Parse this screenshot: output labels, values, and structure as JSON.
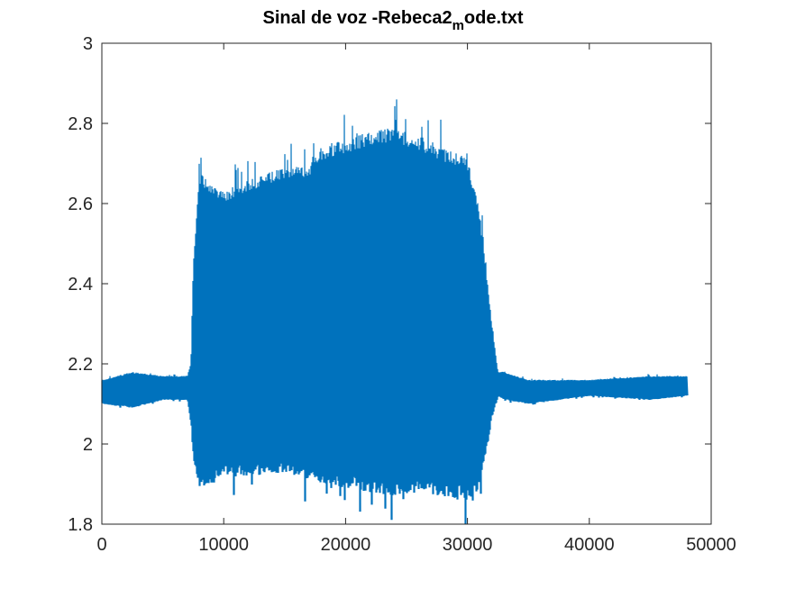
{
  "chart_data": {
    "type": "line",
    "title": "Sinal de voz -Rebeca2",
    "title_subscript": "m",
    "title_suffix": "ode.txt",
    "xlabel": "",
    "ylabel": "",
    "xlim": [
      0,
      50000
    ],
    "ylim": [
      1.8,
      3.0
    ],
    "x_ticks": [
      0,
      10000,
      20000,
      30000,
      40000,
      50000
    ],
    "x_tick_labels": [
      "0",
      "10000",
      "20000",
      "30000",
      "40000",
      "50000"
    ],
    "y_ticks": [
      1.8,
      2.0,
      2.2,
      2.4,
      2.6,
      2.8,
      3.0
    ],
    "y_tick_labels": [
      "1.8",
      "2",
      "2.2",
      "2.4",
      "2.6",
      "2.8",
      "3"
    ],
    "grid": false,
    "series_color": "#0072BD",
    "series": [
      {
        "samples": 48000,
        "envelope_x": [
          0,
          2500,
          5000,
          7000,
          7300,
          7500,
          8000,
          10000,
          12000,
          15000,
          17000,
          18000,
          20000,
          22000,
          24000,
          26000,
          28000,
          30000,
          30500,
          31000,
          31500,
          32000,
          32500,
          33000,
          35000,
          40000,
          45000,
          48000
        ],
        "envelope_upper": [
          2.16,
          2.18,
          2.17,
          2.17,
          2.2,
          2.45,
          2.68,
          2.63,
          2.66,
          2.69,
          2.7,
          2.74,
          2.76,
          2.78,
          2.79,
          2.77,
          2.74,
          2.72,
          2.65,
          2.58,
          2.45,
          2.3,
          2.18,
          2.18,
          2.16,
          2.16,
          2.17,
          2.17
        ],
        "envelope_lower": [
          2.1,
          2.09,
          2.11,
          2.11,
          2.05,
          1.95,
          1.88,
          1.92,
          1.92,
          1.93,
          1.91,
          1.89,
          1.89,
          1.88,
          1.87,
          1.88,
          1.87,
          1.86,
          1.87,
          1.9,
          1.98,
          2.07,
          2.12,
          2.11,
          2.1,
          2.12,
          2.11,
          2.12
        ]
      }
    ]
  }
}
